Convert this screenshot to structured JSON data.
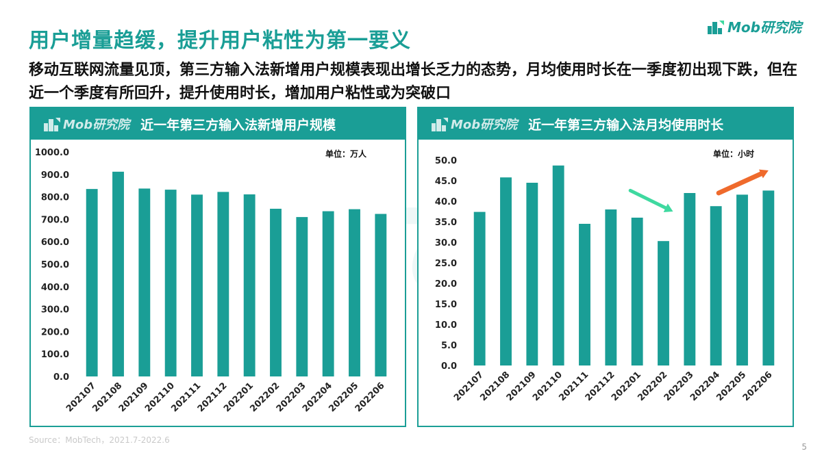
{
  "header": {
    "title": "用户增量趋缓，提升用户粘性为第一要义",
    "subtitle": "移动互联网流量见顶，第三方输入法新增用户规模表现出增长乏力的态势，月均使用时长在一季度初出现下跌，但在近一个季度有所回升，提升使用时长，增加用户粘性或为突破口"
  },
  "brand": {
    "text": "Mob研究院",
    "icon": "mob-logo-icon"
  },
  "watermark": "MobTech",
  "footer": {
    "source": "Source：MobTech，2021.7-2022.6",
    "page": "5"
  },
  "colors": {
    "accent": "#1a9e96",
    "bar": "#1a9e96",
    "arrow_down": "#3fd9a0",
    "arrow_up": "#ef6a2c"
  },
  "chart_data": [
    {
      "type": "bar",
      "title": "近一年第三方输入法新增用户规模",
      "unit_label": "单位：万人",
      "logo_text": "Mob研究院",
      "categories": [
        "202107",
        "202108",
        "202109",
        "202110",
        "202111",
        "202112",
        "202201",
        "202202",
        "202203",
        "202204",
        "202205",
        "202206"
      ],
      "values": [
        835,
        912,
        837,
        832,
        810,
        822,
        811,
        747,
        710,
        736,
        745,
        724
      ],
      "ylim": [
        0,
        1000
      ],
      "yticks": [
        "0.0",
        "100.0",
        "200.0",
        "300.0",
        "400.0",
        "500.0",
        "600.0",
        "700.0",
        "800.0",
        "900.0",
        "1000.0"
      ],
      "grid": false
    },
    {
      "type": "bar",
      "title": "近一年第三方输入法月均使用时长",
      "unit_label": "单位：小时",
      "logo_text": "Mob研究院",
      "categories": [
        "202107",
        "202108",
        "202109",
        "202110",
        "202111",
        "202112",
        "202201",
        "202202",
        "202203",
        "202204",
        "202205",
        "202206"
      ],
      "values": [
        37.4,
        45.8,
        44.5,
        48.7,
        34.5,
        38.0,
        36.0,
        30.3,
        42.0,
        38.8,
        41.6,
        42.6
      ],
      "ylim": [
        0,
        50
      ],
      "yticks": [
        "0.0",
        "5.0",
        "10.0",
        "15.0",
        "20.0",
        "25.0",
        "30.0",
        "35.0",
        "40.0",
        "45.0",
        "50.0"
      ],
      "grid": false,
      "annotations": [
        {
          "type": "arrow",
          "direction": "down",
          "color_key": "arrow_down",
          "from_category": "202201",
          "to_category": "202202"
        },
        {
          "type": "arrow",
          "direction": "up",
          "color_key": "arrow_up",
          "from_category": "202204",
          "to_category": "202206"
        }
      ]
    }
  ]
}
